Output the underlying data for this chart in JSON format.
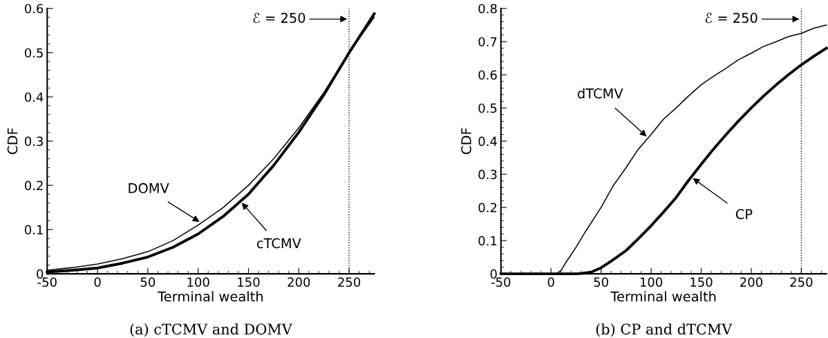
{
  "chart_data": [
    {
      "type": "line",
      "title": "(a) cTCMV and DOMV",
      "xlabel": "Terminal wealth",
      "ylabel": "CDF",
      "xlim": [
        -50,
        275
      ],
      "xticks": [
        -50,
        0,
        50,
        100,
        150,
        200,
        250
      ],
      "ylim": [
        0,
        0.6
      ],
      "yticks": [
        0,
        0.1,
        0.2,
        0.3,
        0.4,
        0.5,
        0.6
      ],
      "grid": false,
      "legend": false,
      "x": [
        -50,
        -25,
        0,
        25,
        50,
        75,
        100,
        125,
        150,
        175,
        200,
        225,
        250,
        275
      ],
      "series": [
        {
          "color": "#000000",
          "values": [
            0.004,
            0.008,
            0.013,
            0.024,
            0.038,
            0.06,
            0.09,
            0.13,
            0.18,
            0.245,
            0.32,
            0.405,
            0.5,
            0.588
          ]
        },
        {
          "color": "#000000",
          "values": [
            0.008,
            0.014,
            0.022,
            0.034,
            0.05,
            0.075,
            0.11,
            0.15,
            0.2,
            0.26,
            0.33,
            0.41,
            0.5,
            0.58
          ]
        }
      ],
      "ref_lines": [
        {
          "axis": "x",
          "value": 250,
          "label": "ℰ = 250",
          "line_style": "dotted",
          "color": "#000000"
        }
      ],
      "annotations": [
        {
          "text": "DOMV",
          "x": 103,
          "y": 0.115
        },
        {
          "text": "cTCMV",
          "x": 142,
          "y": 0.164
        }
      ]
    },
    {
      "type": "line",
      "title": "(b) CP and dTCMV",
      "xlabel": "Terminal wealth",
      "ylabel": "CDF",
      "xlim": [
        -50,
        275
      ],
      "xticks": [
        -50,
        0,
        50,
        100,
        150,
        200,
        250
      ],
      "ylim": [
        0,
        0.8
      ],
      "yticks": [
        0,
        0.1,
        0.2,
        0.3,
        0.4,
        0.5,
        0.6,
        0.7,
        0.8
      ],
      "grid": false,
      "legend": false,
      "series": [
        {
          "color": "#000000",
          "x": [
            -50,
            0,
            25,
            30,
            40,
            50,
            60,
            75,
            87,
            100,
            112,
            125,
            137,
            150,
            162,
            175,
            187,
            200,
            212,
            225,
            237,
            250,
            262,
            275
          ],
          "values": [
            0,
            0,
            0,
            0.001,
            0.005,
            0.018,
            0.038,
            0.07,
            0.105,
            0.145,
            0.185,
            0.23,
            0.28,
            0.33,
            0.375,
            0.42,
            0.46,
            0.5,
            0.535,
            0.57,
            0.6,
            0.63,
            0.655,
            0.68
          ]
        },
        {
          "color": "#000000",
          "x": [
            -50,
            0,
            5,
            10,
            15,
            20,
            25,
            35,
            50,
            62,
            75,
            87,
            100,
            112,
            125,
            137,
            150,
            162,
            175,
            187,
            200,
            212,
            225,
            237,
            250,
            262,
            275
          ],
          "values": [
            0,
            0,
            0,
            0.01,
            0.035,
            0.057,
            0.08,
            0.13,
            0.2,
            0.265,
            0.32,
            0.375,
            0.42,
            0.465,
            0.5,
            0.535,
            0.57,
            0.595,
            0.62,
            0.645,
            0.665,
            0.685,
            0.7,
            0.715,
            0.725,
            0.74,
            0.75
          ]
        }
      ],
      "ref_lines": [
        {
          "axis": "x",
          "value": 250,
          "label": "ℰ = 250",
          "line_style": "dotted",
          "color": "#000000"
        }
      ],
      "annotations": [
        {
          "text": "dTCMV",
          "x": 97,
          "y": 0.41
        },
        {
          "text": "CP",
          "x": 140,
          "y": 0.292
        }
      ]
    }
  ]
}
